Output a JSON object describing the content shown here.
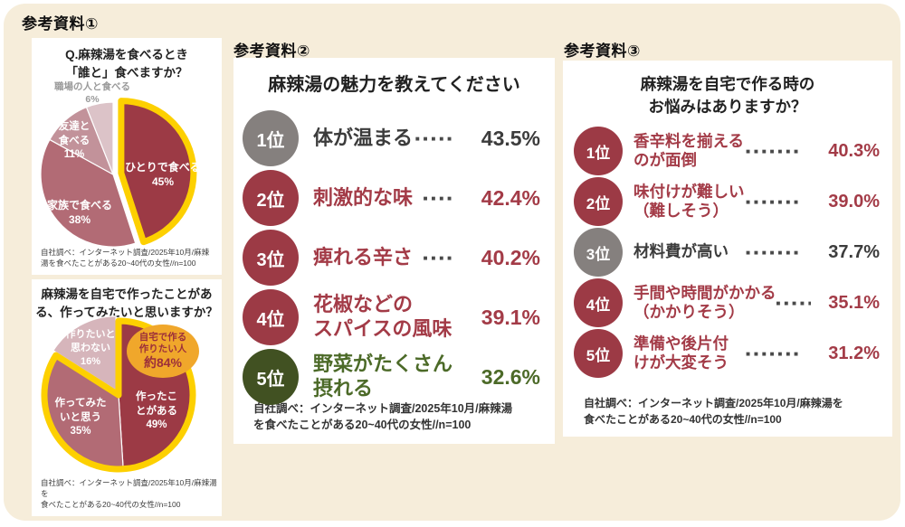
{
  "page": {
    "background": "#f6edda",
    "card_background": "#ffffff"
  },
  "colors": {
    "dark_red": "#9c3a45",
    "rose": "#b26b75",
    "light_rose": "#c2929a",
    "pale_pink": "#d6b5bb",
    "highlight_yellow": "#fdd000",
    "callout_orange": "#f0a72b",
    "gray_badge": "#85807e",
    "green_badge": "#415122",
    "red_text": "#a33b47",
    "green_text": "#4c6a28",
    "dark_text": "#3c3c3c"
  },
  "sections": {
    "s1": {
      "label": "参考資料①",
      "card1": {
        "title1": "Q.麻辣湯を食べるとき",
        "title2": "「誰と」食べますか？",
        "src1": "自社調べ：インターネット調査/2025年10月/麻辣",
        "src2": "湯を食べたことがある20~40代の女性//n=100"
      },
      "card2": {
        "title1": "麻辣湯を自宅で作ったことがあ",
        "title2": "る、作ってみたいと思いますか？",
        "src1": "自社調べ：インターネット調査/2025年10月/麻辣湯を",
        "src2": "食べたことがある20~40代の女性//n=100"
      }
    },
    "s2": {
      "label": "参考資料②",
      "src1": "自社調べ：インターネット調査/2025年10月/麻辣湯",
      "src2": "を食べたことがある20~40代の女性//n=100"
    },
    "s3": {
      "label": "参考資料③",
      "title1": "麻辣湯を自宅で作る時の",
      "title2": "お悩みはありますか？",
      "src1": "自社調べ：インターネット調査/2025年10月/麻辣湯を",
      "src2": "食べたことがある20~40代の女性//n=100"
    }
  },
  "chart_data": [
    {
      "type": "pie",
      "title": "Q.麻辣湯を食べるとき「誰と」食べますか？",
      "labels": [
        "ひとりで食べる",
        "家族で食べる",
        "友達と食べる",
        "職場の人と食べる"
      ],
      "values": [
        45,
        38,
        11,
        6
      ],
      "unit": "%",
      "colors": [
        "#9c3a45",
        "#b26b75",
        "#c2929a",
        "#dcc3c8"
      ],
      "highlight": {
        "label": "ひとりで食べる",
        "style": "exploded-yellow-outline"
      },
      "slice_label_lines": [
        [
          "ひとりで食べる",
          "45%"
        ],
        [
          "家族で食べる",
          "38%"
        ],
        [
          "友達と",
          "食べる",
          "11%"
        ],
        [
          "職場の人と食べる",
          "6%"
        ]
      ],
      "source": "自社調べ：インターネット調査/2025年10月/麻辣湯を食べたことがある20~40代の女性//n=100"
    },
    {
      "type": "pie",
      "title": "麻辣湯を自宅で作ったことがある、作ってみたいと思いますか？",
      "labels": [
        "作ったことがある",
        "作ってみたいと思う",
        "作りたいと思わない"
      ],
      "values": [
        49,
        35,
        16
      ],
      "unit": "%",
      "colors": [
        "#9c3a45",
        "#b26b75",
        "#d6b5bb"
      ],
      "highlight": {
        "labels": [
          "作ったことがある",
          "作ってみたいと思う"
        ],
        "combined": "約84%",
        "style": "yellow-outline"
      },
      "callout_lines": [
        "自宅で作る",
        "作りたい人",
        "約84%"
      ],
      "slice_label_lines": [
        [
          "作ったこ",
          "とがある",
          "49%"
        ],
        [
          "作ってみた",
          "いと思う",
          "35%"
        ],
        [
          "作りたいと",
          "思わない",
          "16%"
        ]
      ],
      "source": "自社調べ：インターネット調査/2025年10月/麻辣湯を食べたことがある20~40代の女性//n=100"
    },
    {
      "type": "ranking",
      "title": "麻辣湯の魅力を教えてください",
      "items": [
        {
          "rank": "1位",
          "lines": [
            "体が温まる"
          ],
          "value": 43.5,
          "pct": "43.5%",
          "dots": 5,
          "circle": "#85807e",
          "text": "#3c3c3c"
        },
        {
          "rank": "2位",
          "lines": [
            "刺激的な味"
          ],
          "value": 42.4,
          "pct": "42.4%",
          "dots": 4,
          "circle": "#9c3a45",
          "text": "#a33b47"
        },
        {
          "rank": "3位",
          "lines": [
            "痺れる辛さ"
          ],
          "value": 40.2,
          "pct": "40.2%",
          "dots": 4,
          "circle": "#9c3a45",
          "text": "#a33b47"
        },
        {
          "rank": "4位",
          "lines": [
            "花椒などの",
            "スパイスの風味"
          ],
          "value": 39.1,
          "pct": "39.1%",
          "dots": 0,
          "circle": "#9c3a45",
          "text": "#a33b47"
        },
        {
          "rank": "5位",
          "lines": [
            "野菜がたくさん",
            "摂れる"
          ],
          "value": 32.6,
          "pct": "32.6%",
          "dots": 0,
          "circle": "#415122",
          "text": "#4c6a28"
        }
      ],
      "source": "自社調べ：インターネット調査/2025年10月/麻辣湯を食べたことがある20~40代の女性//n=100"
    },
    {
      "type": "ranking",
      "title": "麻辣湯を自宅で作る時のお悩みはありますか？",
      "items": [
        {
          "rank": "1位",
          "lines": [
            "香辛料を揃える",
            "のが面倒"
          ],
          "value": 40.3,
          "pct": "40.3%",
          "dots": 7,
          "circle": "#9c3a45",
          "text": "#a33b47"
        },
        {
          "rank": "2位",
          "lines": [
            "味付けが難しい",
            "（難しそう）"
          ],
          "value": 39.0,
          "pct": "39.0%",
          "dots": 7,
          "circle": "#9c3a45",
          "text": "#a33b47"
        },
        {
          "rank": "3位",
          "lines": [
            "材料費が高い"
          ],
          "value": 37.7,
          "pct": "37.7%",
          "dots": 7,
          "circle": "#85807e",
          "text": "#3c3c3c"
        },
        {
          "rank": "4位",
          "lines": [
            "手間や時間がかかる",
            "（かかりそう）"
          ],
          "value": 35.1,
          "pct": "35.1%",
          "dots": 5,
          "circle": "#9c3a45",
          "text": "#a33b47"
        },
        {
          "rank": "5位",
          "lines": [
            "準備や後片付",
            "けが大変そう"
          ],
          "value": 31.2,
          "pct": "31.2%",
          "dots": 7,
          "circle": "#9c3a45",
          "text": "#a33b47"
        }
      ],
      "source": "自社調べ：インターネット調査/2025年10月/麻辣湯を食べたことがある20~40代の女性//n=100"
    }
  ]
}
